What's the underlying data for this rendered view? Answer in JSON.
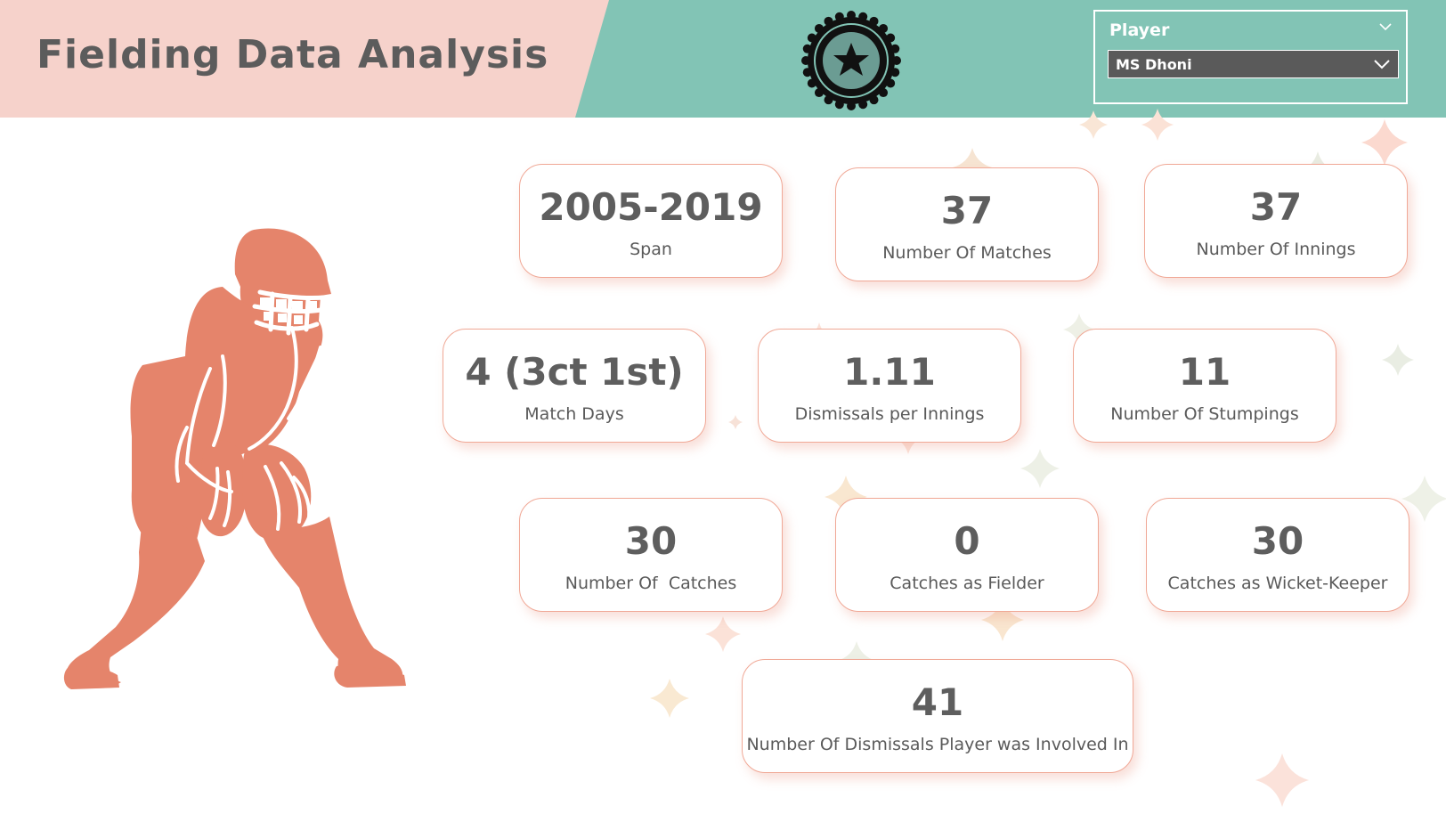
{
  "header": {
    "title": "Fielding Data Analysis",
    "logo_icon": "star-badge-icon"
  },
  "slicer": {
    "label": "Player",
    "selected": "MS Dhoni"
  },
  "colors": {
    "header_pink": "#f6d2cb",
    "header_teal": "#82c4b5",
    "accent_salmon": "#e5846b",
    "text_dark": "#5e5e5e"
  },
  "kpis": [
    {
      "value": "2005-2019",
      "label": "Span"
    },
    {
      "value": "37",
      "label": "Number Of Matches"
    },
    {
      "value": "37",
      "label": "Number Of Innings"
    },
    {
      "value": "4 (3ct 1st)",
      "label": "Match Days"
    },
    {
      "value": "1.11",
      "label": "Dismissals per Innings"
    },
    {
      "value": "11",
      "label": "Number Of Stumpings"
    },
    {
      "value": "30",
      "label": "Number Of  Catches"
    },
    {
      "value": "0",
      "label": "Catches as Fielder"
    },
    {
      "value": "30",
      "label": "Catches as Wicket-Keeper"
    },
    {
      "value": "41",
      "label": "Number Of Dismissals Player was Involved In"
    }
  ]
}
